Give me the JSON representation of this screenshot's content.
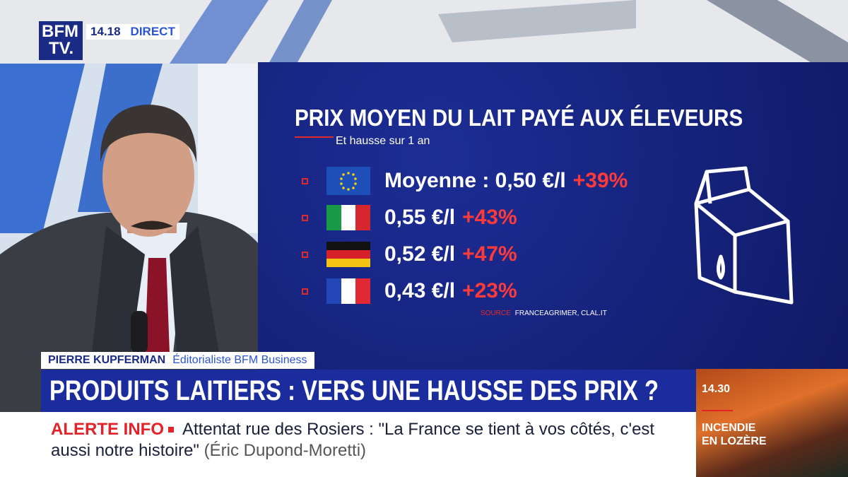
{
  "logo": {
    "line1": "BFM",
    "line2": "TV."
  },
  "live": {
    "time": "14.18",
    "label": "DIRECT"
  },
  "infographic": {
    "title": "PRIX MOYEN DU LAIT PAYÉ AUX ÉLEVEURS",
    "subtitle": "Et hausse sur 1 an",
    "rows": [
      {
        "label": "Moyenne : 0,50 €/l",
        "change": "+39%"
      },
      {
        "label": "0,55 €/l",
        "change": "+43%"
      },
      {
        "label": "0,52 €/l",
        "change": "+47%"
      },
      {
        "label": "0,43 €/l",
        "change": "+23%"
      }
    ],
    "source_label": "SOURCE",
    "source": "FRANCEAGRIMER, CLAL.IT"
  },
  "lower_third": {
    "name": "PIERRE KUPFERMAN",
    "role": "Éditorialiste BFM Business",
    "headline": "PRODUITS LAITIERS : VERS UNE HAUSSE DES PRIX ?"
  },
  "ticker": {
    "label": "ALERTE INFO",
    "text": "Attentat rue des Rosiers : \"La France se tient à vos côtés, c'est aussi notre histoire\"",
    "attribution": "(Éric Dupond-Moretti)"
  },
  "side_panel": {
    "time": "14.30",
    "title_lines": [
      "INCENDIE",
      "EN LOZÈRE"
    ]
  }
}
